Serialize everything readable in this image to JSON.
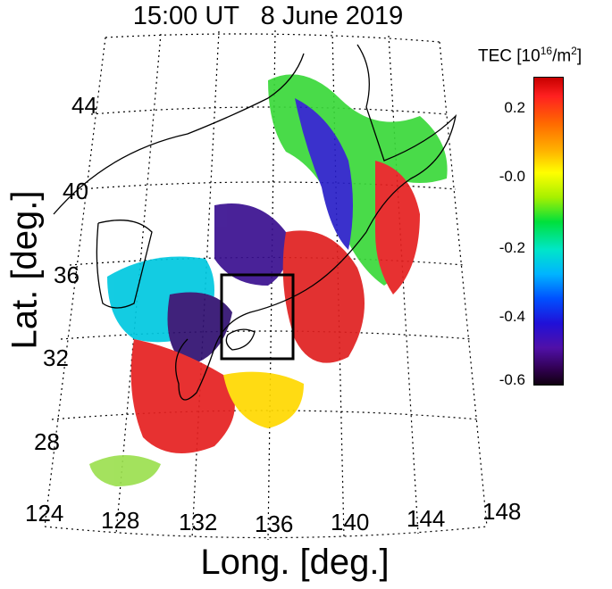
{
  "title": "15:00 UT   8 June 2019",
  "y_axis_label": "Lat. [deg.]",
  "x_axis_label": "Long. [deg.]",
  "lat_ticks": [
    "44",
    "40",
    "36",
    "32",
    "28"
  ],
  "lon_ticks": [
    "124",
    "128",
    "132",
    "136",
    "140",
    "144",
    "148"
  ],
  "colorbar": {
    "label": "TEC [10",
    "label_exp": "16",
    "label_unit": "/m",
    "label_unit_exp": "2",
    "label_close": "]",
    "ticks": [
      "0.2",
      "-0.0",
      "-0.2",
      "-0.4",
      "-0.6"
    ],
    "colors": [
      "#c80000",
      "#ff6a00",
      "#ffff00",
      "#00e03c",
      "#00b4ff",
      "#2010d8",
      "#300050"
    ]
  },
  "region_box": {
    "lon_range": [
      133.5,
      137
    ],
    "lat_range": [
      33,
      35.5
    ]
  }
}
